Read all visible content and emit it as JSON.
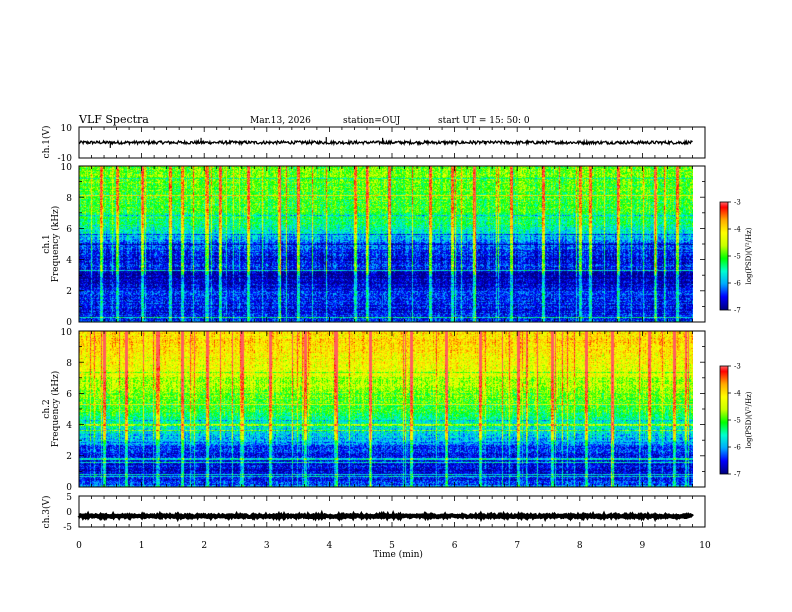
{
  "chart_data": {
    "type": "heatmap",
    "header": {
      "title": "VLF Spectra",
      "date": "Mar.13, 2026",
      "station": "station=OUJ",
      "start": "start  UT =   15: 50: 0"
    },
    "x_axis": {
      "label": "Time  (min)",
      "range": [
        0,
        10
      ],
      "ticks": [
        "0",
        "1",
        "2",
        "3",
        "4",
        "5",
        "6",
        "7",
        "8",
        "9",
        "10"
      ]
    },
    "panels": [
      {
        "id": "ch1-waveform",
        "ylabel": "ch.1(V)",
        "ylim": [
          -10,
          10
        ],
        "yticks": [
          "10",
          "-10"
        ],
        "baseline": 0,
        "noise_amplitude": 1,
        "spikes": [
          {
            "t": 0.5,
            "v": -3.5
          },
          {
            "t": 1.95,
            "v": 3.0
          },
          {
            "t": 3.95,
            "v": 3.5
          },
          {
            "t": 4.85,
            "v": 3.0
          },
          {
            "t": 6.3,
            "v": 1.5
          }
        ]
      },
      {
        "id": "ch1-spectrogram",
        "ylabel": "ch.1",
        "ylabel2": "Frequency (kHz)",
        "ylim": [
          0,
          10
        ],
        "yticks": [
          "0",
          "2",
          "4",
          "6",
          "8",
          "10"
        ],
        "data_end_min": 9.8,
        "log_psd_profile": [
          {
            "f": 0.0,
            "v": -6.3
          },
          {
            "f": 0.5,
            "v": -6.6
          },
          {
            "f": 1.0,
            "v": -6.6
          },
          {
            "f": 1.5,
            "v": -6.4
          },
          {
            "f": 2.0,
            "v": -6.5
          },
          {
            "f": 2.5,
            "v": -6.8
          },
          {
            "f": 3.0,
            "v": -6.9
          },
          {
            "f": 3.5,
            "v": -6.5
          },
          {
            "f": 4.0,
            "v": -6.6
          },
          {
            "f": 5.0,
            "v": -6.3
          },
          {
            "f": 5.5,
            "v": -5.9
          },
          {
            "f": 6.0,
            "v": -5.5
          },
          {
            "f": 7.0,
            "v": -5.2
          },
          {
            "f": 8.0,
            "v": -5.0
          },
          {
            "f": 9.0,
            "v": -4.9
          },
          {
            "f": 10.0,
            "v": -4.9
          }
        ],
        "burst_times_min": [
          0.35,
          0.6,
          1.0,
          1.45,
          1.65,
          2.05,
          2.25,
          2.7,
          3.2,
          3.5,
          4.4,
          4.6,
          4.95,
          5.6,
          5.95,
          6.3,
          6.9,
          7.4,
          8.0,
          8.15,
          8.6,
          9.2,
          9.55
        ]
      },
      {
        "id": "ch2-spectrogram",
        "ylabel": "ch.2",
        "ylabel2": "Frequency (kHz)",
        "ylim": [
          0,
          10
        ],
        "yticks": [
          "0",
          "2",
          "4",
          "6",
          "8",
          "10"
        ],
        "data_end_min": 9.8,
        "log_psd_profile": [
          {
            "f": 0.0,
            "v": -6.2
          },
          {
            "f": 0.5,
            "v": -6.6
          },
          {
            "f": 1.0,
            "v": -6.7
          },
          {
            "f": 2.0,
            "v": -6.5
          },
          {
            "f": 2.5,
            "v": -6.4
          },
          {
            "f": 3.0,
            "v": -5.9
          },
          {
            "f": 3.5,
            "v": -5.7
          },
          {
            "f": 4.0,
            "v": -5.5
          },
          {
            "f": 5.0,
            "v": -5.1
          },
          {
            "f": 6.0,
            "v": -4.8
          },
          {
            "f": 7.0,
            "v": -4.5
          },
          {
            "f": 8.0,
            "v": -4.2
          },
          {
            "f": 9.0,
            "v": -4.0
          },
          {
            "f": 10.0,
            "v": -4.0
          }
        ],
        "burst_times_min": [
          0.4,
          0.75,
          1.25,
          1.65,
          2.05,
          2.6,
          3.05,
          3.6,
          4.1,
          4.65,
          5.3,
          5.85,
          6.4,
          7.0,
          7.55,
          8.1,
          8.5,
          9.1,
          9.5
        ]
      },
      {
        "id": "ch3-waveform",
        "ylabel": "ch.3(V)",
        "ylim": [
          -5,
          5
        ],
        "yticks": [
          "5",
          "0",
          "-5"
        ],
        "baseline": -1.5,
        "noise_amplitude": 0.3
      }
    ],
    "colorbar": {
      "label": "log(PSD)(V²/Hz)",
      "range": [
        -7,
        -3
      ],
      "ticks": [
        "-3",
        "-4",
        "-5",
        "-6",
        "-7"
      ],
      "colors": [
        "#000080",
        "#0000ff",
        "#00aaff",
        "#00ffd0",
        "#00ff00",
        "#c8ff00",
        "#ffff00",
        "#ffaa00",
        "#ff0000",
        "#ffffff"
      ]
    }
  }
}
